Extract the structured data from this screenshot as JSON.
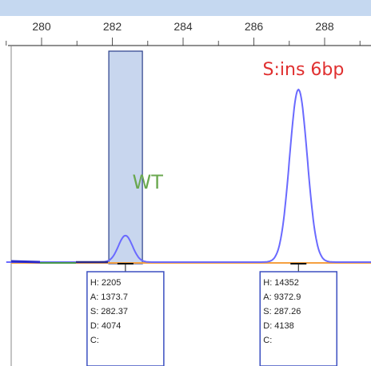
{
  "chart_data": {
    "type": "line",
    "title": "",
    "xlabel": "",
    "ylabel": "",
    "xlim": [
      279,
      292
    ],
    "ylim": [
      0,
      15000
    ],
    "x_ticks": [
      280,
      282,
      284,
      286,
      288
    ],
    "grid": false,
    "bin_highlight": {
      "from": 281.9,
      "to": 282.85
    },
    "series": [
      {
        "color": "#6a6aff",
        "peaks": [
          {
            "center": 282.37,
            "height": 2205,
            "width": 0.2
          },
          {
            "center": 287.26,
            "height": 14352,
            "width": 0.25
          }
        ]
      }
    ],
    "baseline": {
      "color": "#f5a040"
    },
    "annotations": [
      {
        "text": "S:ins 6bp",
        "x": 287.4,
        "color": "#e03030"
      },
      {
        "text": "WT",
        "x": 283.0,
        "color": "#6aa84f"
      }
    ],
    "peak_labels": [
      {
        "x": 282.37,
        "lines": [
          "H: 2205",
          "A: 1373.7",
          "S: 282.37",
          "D: 4074",
          "C:"
        ]
      },
      {
        "x": 287.26,
        "lines": [
          "H: 14352",
          "A: 9372.9",
          "S: 287.26",
          "D: 4138",
          "C:"
        ]
      }
    ]
  },
  "colors": {
    "axis_band": "#c5d8f0",
    "highlight_fill": "#c8d6ee",
    "highlight_stroke": "#2a3e8a",
    "label_box_stroke": "#3b4fc0"
  }
}
